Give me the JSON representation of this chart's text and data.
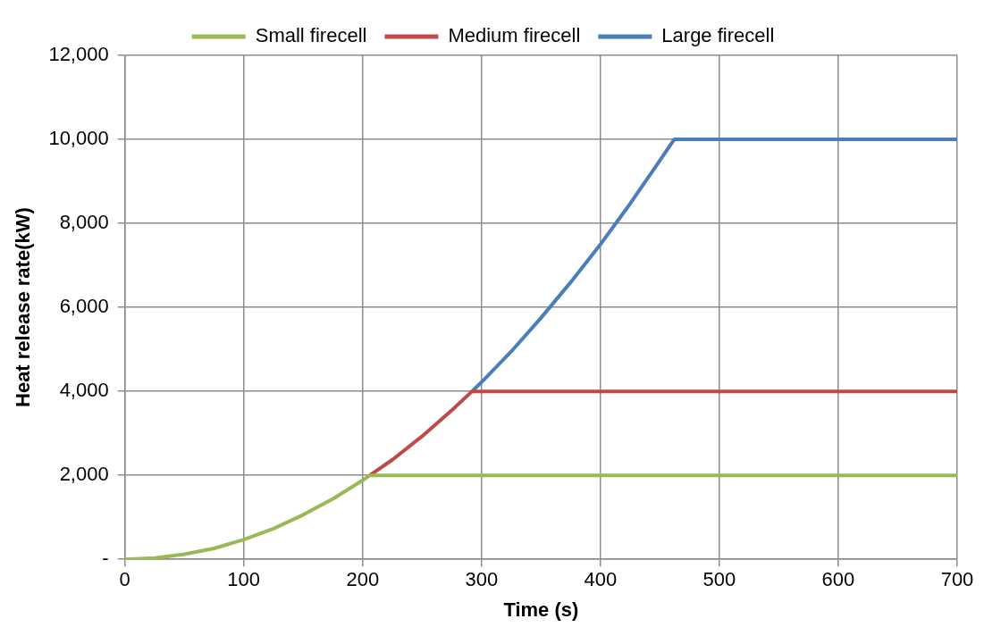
{
  "chart_data": {
    "type": "line",
    "xlabel": "Time (s)",
    "ylabel": "Heat release rate(kW)",
    "xlim": [
      0,
      700
    ],
    "xticks": [
      0,
      100,
      200,
      300,
      400,
      500,
      600,
      700
    ],
    "ylim": [
      0,
      12000
    ],
    "yticks": [
      {
        "value": 0,
        "label": "-"
      },
      {
        "value": 2000,
        "label": "2,000"
      },
      {
        "value": 4000,
        "label": "4,000"
      },
      {
        "value": 6000,
        "label": "6,000"
      },
      {
        "value": 8000,
        "label": "8,000"
      },
      {
        "value": 10000,
        "label": "10,000"
      },
      {
        "value": 12000,
        "label": "12,000"
      }
    ],
    "grid": true,
    "legend": "top",
    "marker": "none",
    "line_style": "solid",
    "series": [
      {
        "name": "Large firecell",
        "color": "#4a7ebb",
        "x": [
          292,
          300,
          325,
          350,
          375,
          400,
          425,
          450,
          462,
          700
        ],
        "values": [
          4000,
          4220,
          4950,
          5750,
          6600,
          7500,
          8470,
          9500,
          10000,
          10000
        ]
      },
      {
        "name": "Medium firecell",
        "color": "#be4b48",
        "x": [
          206,
          225,
          250,
          275,
          292,
          700
        ],
        "values": [
          2000,
          2370,
          2930,
          3550,
          4000,
          4000
        ]
      },
      {
        "name": "Small firecell",
        "color": "#98b954",
        "x": [
          0,
          25,
          50,
          75,
          100,
          125,
          150,
          175,
          200,
          206,
          700
        ],
        "values": [
          0,
          30,
          120,
          260,
          470,
          730,
          1060,
          1440,
          1880,
          2000,
          2000
        ]
      }
    ]
  }
}
